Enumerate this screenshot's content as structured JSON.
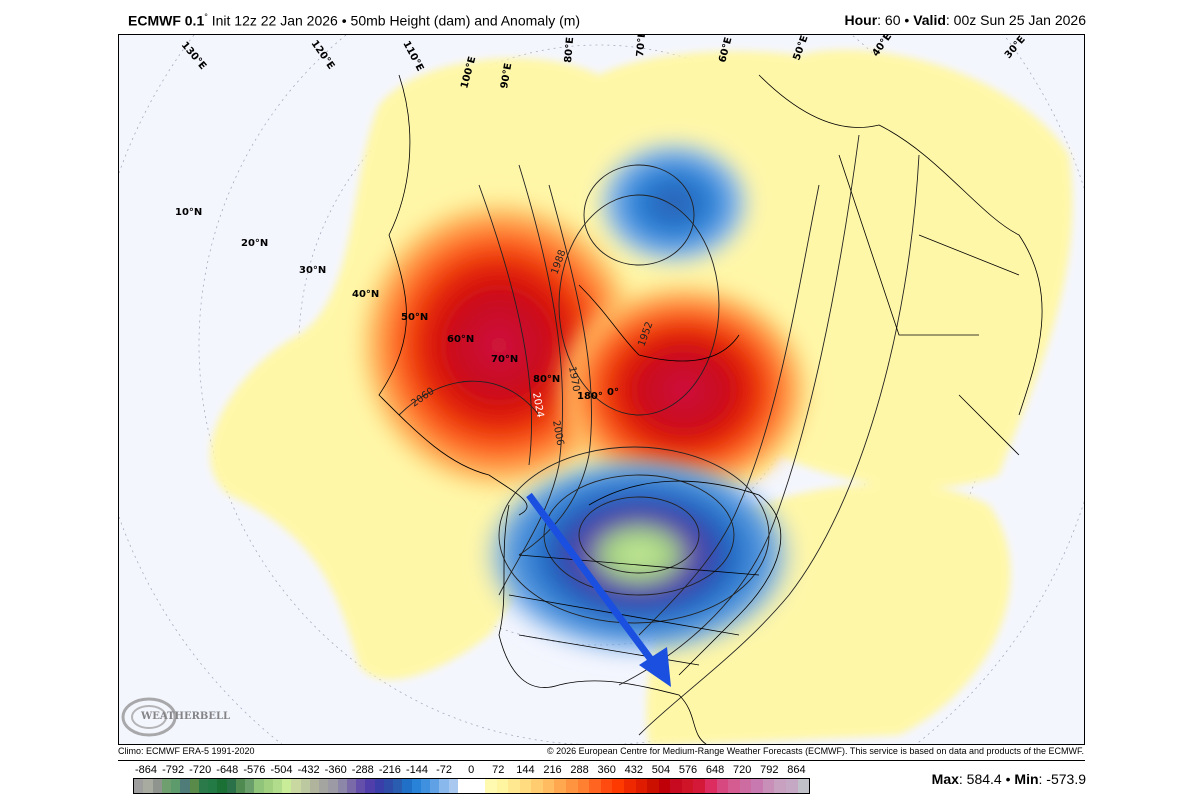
{
  "header": {
    "model": "ECMWF 0.1",
    "degree": "°",
    "init": "Init 12z 22 Jan 2026",
    "separator": "•",
    "product": "50mb Height (dam) and Anomaly (m)",
    "hour_label": "Hour",
    "hour_value": ": 60",
    "valid_label": "Valid",
    "valid_value": ": 00z Sun 25 Jan 2026"
  },
  "map": {
    "latitude_labels": [
      "10°N",
      "20°N",
      "30°N",
      "40°N",
      "50°N",
      "60°N",
      "70°N",
      "80°N"
    ],
    "longitude_labels": [
      "130°E",
      "120°E",
      "110°E",
      "100°E",
      "90°E",
      "80°E",
      "70°E",
      "60°E",
      "50°E",
      "40°E",
      "30°E",
      "180°",
      "0°"
    ],
    "contour_labels": [
      "1988",
      "1952",
      "1970",
      "2024",
      "2006",
      "2060"
    ],
    "logo_text": "WeatherBELL Analytics LLC",
    "arrow_color": "#1a4fe0",
    "background_color": "#f4f6fe"
  },
  "footer": {
    "climo": "Climo: ECMWF ERA-5 1991-2020",
    "copyright": "© 2026 European Centre for Medium-Range Weather Forecasts (ECMWF). This service is based on data and products of the ECMWF."
  },
  "colorbar": {
    "ticks": [
      "-864",
      "-792",
      "-720",
      "-648",
      "-576",
      "-504",
      "-432",
      "-360",
      "-288",
      "-216",
      "-144",
      "-72",
      "0",
      "72",
      "144",
      "216",
      "288",
      "360",
      "432",
      "504",
      "576",
      "648",
      "720",
      "792",
      "864"
    ],
    "negative_colors": [
      "#9e9e9e",
      "#a8aba0",
      "#8f948f",
      "#6f9e6f",
      "#5d9a6c",
      "#4f7c78",
      "#5a8a4a",
      "#2a7a4a",
      "#237a44",
      "#1a7035",
      "#2a7048",
      "#4f8a50",
      "#6a9e6a",
      "#8fc47a",
      "#a0d080",
      "#b0dc8c",
      "#c8ec98",
      "#c8d8a0",
      "#bcc8a0",
      "#b0b49c",
      "#a4a4a0",
      "#9c9aa4",
      "#8c86a8",
      "#7a6aa8",
      "#6450aa",
      "#503eaa",
      "#3a3ea8",
      "#2e4ca8",
      "#2a5cb0",
      "#2070c8",
      "#2882d8",
      "#4090e0",
      "#60a0e4",
      "#88b8ec",
      "#a8c8f0"
    ],
    "positive_colors": [
      "#fffab0",
      "#fff4a0",
      "#ffe890",
      "#ffdc80",
      "#ffcc70",
      "#ffbc60",
      "#ffa850",
      "#ff9440",
      "#ff8030",
      "#ff6420",
      "#ff4a10",
      "#ff3a00",
      "#f02800",
      "#e01c00",
      "#cc1000",
      "#c00008",
      "#c80a20",
      "#d01428",
      "#d41838",
      "#dc2c60",
      "#d84880",
      "#d45c90",
      "#cc6ca0",
      "#c87ab0",
      "#c890b8",
      "#c8a0c0",
      "#c4a8c4",
      "#c0c0c8"
    ]
  },
  "stats": {
    "max_label": "Max",
    "max_value": ": 584.4",
    "min_label": "Min",
    "min_value": ": -573.9",
    "separator": "•"
  }
}
